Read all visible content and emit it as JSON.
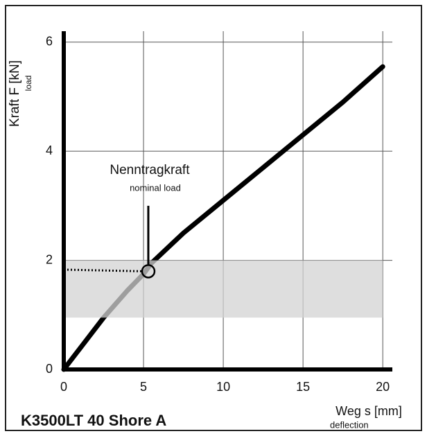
{
  "chart_data": {
    "type": "line",
    "title": "K3500LT 40 Shore A",
    "y_label": "Kraft F [kN]",
    "y_sublabel": "load",
    "x_label": "Weg s [mm]",
    "x_sublabel": "deflection",
    "x": [
      0,
      1,
      2.5,
      4,
      5,
      5.5,
      7.5,
      10,
      12.5,
      15,
      17.5,
      20
    ],
    "series": [
      {
        "name": "K3500LT 40 Shore A",
        "color": "#000000",
        "values": [
          0,
          0.38,
          0.95,
          1.45,
          1.75,
          1.95,
          2.5,
          3.1,
          3.7,
          4.3,
          4.9,
          5.55
        ]
      }
    ],
    "xlim": [
      0,
      20.6
    ],
    "ylim": [
      0,
      6.2
    ],
    "xticks": [
      0,
      5,
      10,
      15,
      20
    ],
    "yticks": [
      0,
      2,
      4,
      6
    ],
    "grid": true,
    "band": {
      "x": [
        0,
        20
      ],
      "y": [
        0.95,
        2
      ],
      "color": "#d3d3d3"
    },
    "annotation": {
      "text": "Nenntragkraft",
      "subtext": "nominal load",
      "x": 5.3,
      "y": 1.8,
      "line_top": 3.0,
      "dotted_from": [
        0,
        1.83
      ]
    }
  }
}
